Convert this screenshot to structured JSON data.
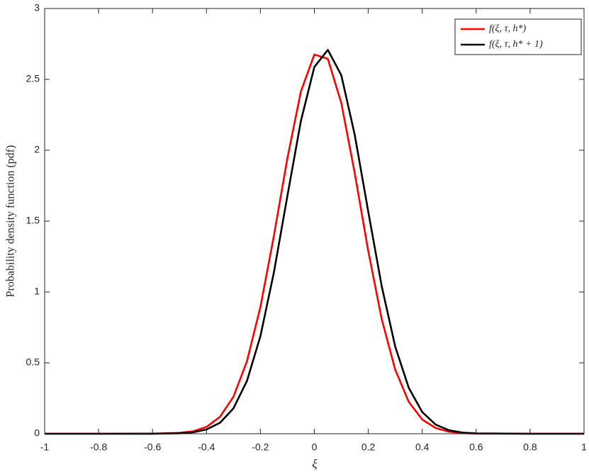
{
  "chart_data": {
    "type": "line",
    "x_label": "ξ",
    "y_label": "Probability density function (pdf)",
    "x": [
      -1,
      -0.8,
      -0.6,
      -0.5,
      -0.45,
      -0.4,
      -0.35,
      -0.3,
      -0.25,
      -0.2,
      -0.15,
      -0.1,
      -0.05,
      0,
      0.05,
      0.1,
      0.15,
      0.2,
      0.25,
      0.3,
      0.35,
      0.4,
      0.45,
      0.5,
      0.55,
      0.6,
      0.8,
      1
    ],
    "series": [
      {
        "name": "f(ξ, τ, h*)",
        "color": "#ff0000",
        "values": [
          0,
          0,
          0.0004,
          0.006,
          0.017,
          0.048,
          0.119,
          0.261,
          0.511,
          0.894,
          1.396,
          1.943,
          2.414,
          2.675,
          2.645,
          2.333,
          1.836,
          1.288,
          0.807,
          0.451,
          0.225,
          0.1,
          0.04,
          0.014,
          0.004,
          0.001,
          0,
          0
        ]
      },
      {
        "name": "f(ξ, τ, h* + 1)",
        "color": "#000000",
        "values": [
          0,
          0,
          0.0002,
          0.003,
          0.01,
          0.03,
          0.077,
          0.179,
          0.372,
          0.688,
          1.138,
          1.677,
          2.205,
          2.588,
          2.708,
          2.529,
          2.107,
          1.566,
          1.039,
          0.614,
          0.324,
          0.153,
          0.064,
          0.024,
          0.008,
          0.002,
          0,
          0
        ]
      }
    ],
    "xlim": [
      -1,
      1
    ],
    "xticks": [
      -1,
      -0.8,
      -0.6,
      -0.4,
      -0.2,
      0,
      0.2,
      0.4,
      0.6,
      0.8,
      1
    ],
    "ylim": [
      0,
      3
    ],
    "yticks": [
      0,
      0.5,
      1,
      1.5,
      2,
      2.5,
      3
    ],
    "grid": false,
    "legend": "top-right"
  }
}
